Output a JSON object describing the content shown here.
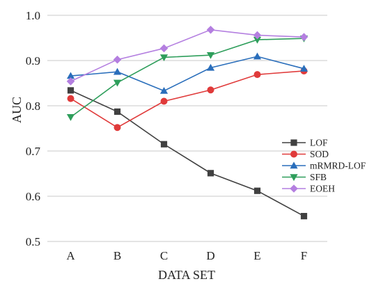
{
  "chart_data": {
    "type": "line",
    "title": "",
    "xlabel": "DATA SET",
    "ylabel": "AUC",
    "categories": [
      "A",
      "B",
      "C",
      "D",
      "E",
      "F"
    ],
    "ylim": [
      0.5,
      1.0
    ],
    "yticks": [
      "0.5",
      "0.6",
      "0.7",
      "0.8",
      "0.9",
      "1.0"
    ],
    "grid": "horizontal",
    "legend_position": "right",
    "series": [
      {
        "name": "LOF",
        "color": "#404040",
        "marker": "square",
        "values": [
          0.834,
          0.787,
          0.715,
          0.651,
          0.612,
          0.556
        ]
      },
      {
        "name": "SOD",
        "color": "#e03a3a",
        "marker": "circle",
        "values": [
          0.816,
          0.752,
          0.81,
          0.835,
          0.869,
          0.877
        ]
      },
      {
        "name": "mRMRD-LOF",
        "color": "#2a6ebb",
        "marker": "triangle-up",
        "values": [
          0.866,
          0.875,
          0.833,
          0.884,
          0.909,
          0.882
        ]
      },
      {
        "name": "SFB",
        "color": "#2e9e5b",
        "marker": "triangle-down",
        "values": [
          0.775,
          0.851,
          0.907,
          0.912,
          0.946,
          0.949
        ]
      },
      {
        "name": "EOEH",
        "color": "#b47fe0",
        "marker": "diamond",
        "values": [
          0.854,
          0.902,
          0.927,
          0.968,
          0.956,
          0.952
        ]
      }
    ]
  }
}
